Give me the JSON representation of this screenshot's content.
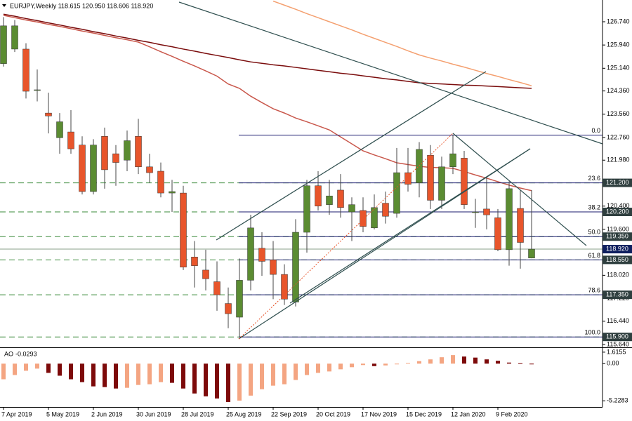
{
  "chart_data": [
    {
      "type": "candlestick",
      "title": "EURJPY,Weekly  118.615 120.950 118.606 118.920",
      "categories": [
        "7 Apr 2019",
        null,
        null,
        null,
        "5 May 2019",
        null,
        null,
        null,
        "2 Jun 2019",
        null,
        null,
        null,
        "30 Jun 2019",
        null,
        null,
        null,
        "28 Jul 2019",
        null,
        null,
        null,
        "25 Aug 2019",
        null,
        null,
        null,
        "22 Sep 2019",
        null,
        null,
        null,
        "20 Oct 2019",
        null,
        null,
        null,
        "17 Nov 2019",
        null,
        null,
        null,
        "15 Dec 2019",
        null,
        null,
        null,
        "12 Jan 2020",
        null,
        null,
        null,
        "9 Feb 2020",
        null,
        null,
        null
      ],
      "open": [
        125.3,
        125.8,
        125.8,
        124.4,
        123.6,
        122.75,
        122.95,
        122.5,
        120.9,
        122.8,
        122.2,
        121.98,
        122.8,
        121.75,
        121.6,
        120.85,
        120.85,
        118.65,
        118.2,
        117.8,
        117.05,
        116.58,
        117.85,
        118.95,
        118.55,
        118.05,
        117.1,
        119.5,
        121.1,
        120.45,
        120.95,
        120.2,
        120.25,
        119.65,
        120.5,
        120.15,
        121.55,
        121.2,
        122.15,
        120.6,
        121.75,
        122.05,
        120.2,
        120.3,
        120.0,
        118.9,
        120.32,
        118.615
      ],
      "high": [
        126.9,
        126.8,
        126.0,
        125.1,
        124.3,
        123.6,
        123.7,
        122.8,
        122.7,
        123.1,
        122.5,
        123.0,
        123.4,
        122.2,
        121.9,
        121.3,
        121.1,
        119.2,
        118.9,
        118.5,
        117.6,
        118.6,
        120.1,
        119.5,
        119.2,
        118.4,
        119.95,
        121.3,
        121.6,
        121.3,
        121.5,
        120.7,
        120.7,
        120.8,
        120.9,
        122.4,
        122.4,
        122.6,
        122.5,
        122.1,
        122.85,
        122.3,
        120.65,
        121.4,
        120.3,
        121.25,
        120.95,
        120.95
      ],
      "low": [
        125.2,
        125.7,
        124.1,
        124.0,
        122.9,
        122.2,
        122.2,
        120.8,
        120.8,
        121.0,
        121.1,
        121.6,
        121.5,
        121.2,
        120.7,
        120.2,
        118.2,
        117.6,
        117.5,
        116.8,
        116.2,
        115.9,
        117.5,
        118.0,
        117.2,
        117.0,
        116.95,
        118.8,
        120.25,
        120.1,
        120.0,
        119.2,
        119.5,
        119.6,
        119.8,
        120.0,
        120.9,
        120.7,
        120.3,
        120.3,
        121.5,
        120.3,
        119.65,
        119.6,
        118.85,
        118.35,
        118.25,
        118.606
      ],
      "close": [
        126.6,
        126.6,
        124.35,
        124.4,
        123.5,
        123.3,
        122.37,
        120.9,
        122.5,
        121.65,
        121.9,
        122.65,
        121.75,
        121.55,
        120.85,
        120.9,
        118.3,
        118.35,
        117.9,
        117.35,
        116.7,
        117.85,
        119.65,
        118.5,
        118.05,
        117.2,
        119.5,
        121.1,
        120.4,
        120.75,
        120.35,
        120.45,
        119.7,
        120.35,
        120.05,
        121.55,
        121.15,
        122.35,
        120.6,
        121.75,
        122.2,
        120.45,
        120.2,
        120.1,
        118.9,
        121.0,
        119.15,
        118.92
      ],
      "up_color": "#5b8c32",
      "down_color": "#e8552b",
      "overlays": [
        {
          "color": "#c9584c",
          "values": [
            126.96,
            126.88,
            126.8,
            126.73,
            126.65,
            126.58,
            126.5,
            126.42,
            126.35,
            126.27,
            126.19,
            126.12,
            126.04,
            125.88,
            125.71,
            125.55,
            125.38,
            125.22,
            125.05,
            124.87,
            124.6,
            124.45,
            124.18,
            123.96,
            123.75,
            123.6,
            123.43,
            123.3,
            123.16,
            123.02,
            122.78,
            122.54,
            122.3,
            122.16,
            122.03,
            121.89,
            121.83,
            121.77,
            121.73,
            121.72,
            121.7,
            121.59,
            121.47,
            121.36,
            121.24,
            121.12,
            121.02,
            120.93
          ]
        },
        {
          "color": "#7a0c0c",
          "values": [
            127.0,
            126.93,
            126.85,
            126.78,
            126.7,
            126.63,
            126.55,
            126.48,
            126.4,
            126.33,
            126.25,
            126.18,
            126.1,
            126.03,
            125.95,
            125.88,
            125.8,
            125.73,
            125.65,
            125.58,
            125.51,
            125.43,
            125.36,
            125.31,
            125.26,
            125.22,
            125.17,
            125.12,
            125.07,
            125.02,
            124.97,
            124.93,
            124.88,
            124.83,
            124.78,
            124.74,
            124.69,
            124.64,
            124.62,
            124.6,
            124.58,
            124.56,
            124.55,
            124.53,
            124.51,
            124.49,
            124.47,
            124.45
          ]
        },
        {
          "color": "#f4a070",
          "values": [
            null,
            null,
            null,
            null,
            null,
            null,
            null,
            null,
            null,
            null,
            null,
            null,
            null,
            null,
            null,
            null,
            null,
            null,
            null,
            null,
            null,
            null,
            null,
            null,
            127.45,
            127.31,
            127.17,
            127.02,
            126.88,
            126.74,
            126.6,
            126.46,
            126.31,
            126.17,
            126.03,
            125.89,
            125.74,
            125.6,
            125.49,
            125.39,
            125.28,
            125.18,
            125.07,
            124.96,
            124.86,
            124.75,
            124.65,
            124.54
          ]
        }
      ],
      "ylim": [
        115.543,
        127.488
      ],
      "yticks": [
        {
          "value": 126.74,
          "label": "126.740"
        },
        {
          "value": 125.94,
          "label": "125.940"
        },
        {
          "value": 125.14,
          "label": "125.140"
        },
        {
          "value": 124.36,
          "label": "124.360"
        },
        {
          "value": 123.56,
          "label": "123.560"
        },
        {
          "value": 122.76,
          "label": "122.760"
        },
        {
          "value": 121.98,
          "label": "121.980"
        },
        {
          "value": 120.4,
          "label": "120.400"
        },
        {
          "value": 119.6,
          "label": "119.600"
        },
        {
          "value": 118.02,
          "label": "118.020"
        },
        {
          "value": 117.22,
          "label": "117.220"
        },
        {
          "value": 116.44,
          "label": "116.440"
        },
        {
          "value": 115.64,
          "label": "115.640"
        }
      ],
      "fib": {
        "ratios": [
          {
            "value": 0,
            "label": "0.0"
          },
          23.6,
          38.2,
          {
            "value": 50,
            "label": "50.0"
          },
          61.8,
          78.6,
          {
            "value": 100,
            "label": "100.0"
          }
        ],
        "prices": [
          122.84,
          {
            "value": 121.2,
            "label": "121.200"
          },
          {
            "value": 120.2,
            "label": "120.200"
          },
          {
            "value": 119.35,
            "label": "119.350"
          },
          {
            "value": 118.55,
            "label": "118.550"
          },
          {
            "value": 117.35,
            "label": "117.350"
          },
          {
            "value": 115.9,
            "label": "115.900"
          }
        ]
      },
      "last_price": {
        "value": 118.92,
        "label": "118.920"
      }
    },
    {
      "type": "bar",
      "title": "AO",
      "values": [
        -2.2,
        -1.6,
        -1.0,
        -0.7,
        -1.3,
        -1.7,
        -2.2,
        -2.6,
        -3.2,
        -3.3,
        -3.5,
        -3.4,
        -3.0,
        -2.9,
        -2.6,
        -2.7,
        -3.5,
        -4.2,
        -4.6,
        -4.9,
        -5.4,
        -5.2,
        -4.5,
        -3.6,
        -3.1,
        -2.9,
        -2.3,
        -1.6,
        -1.3,
        -1.1,
        -0.8,
        -0.5,
        -0.2,
        -0.35,
        -0.25,
        -0.1,
        0.1,
        0.35,
        0.6,
        0.9,
        1.2,
        1.0,
        0.85,
        0.6,
        0.4,
        0.15,
        0.05,
        -0.0293
      ],
      "up_color": "#f4a582",
      "down_color": "#7d0a0a",
      "ylim": [
        -5.9,
        2.0
      ],
      "yticks": [
        1.6155,
        {
          "value": 0,
          "label": "0.00"
        },
        -5.2283
      ]
    }
  ]
}
